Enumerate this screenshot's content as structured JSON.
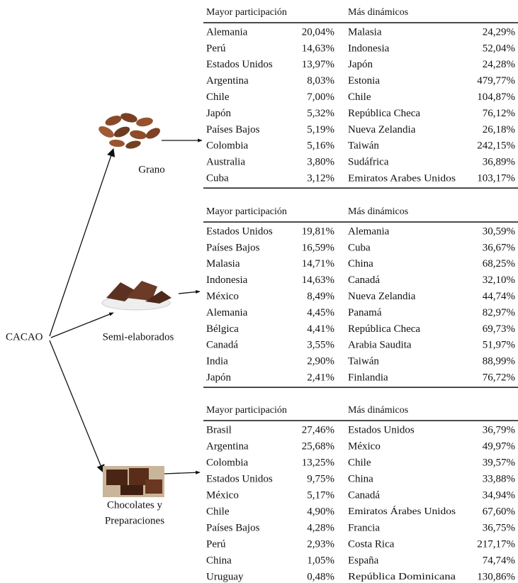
{
  "root": "CACAO",
  "sections": [
    {
      "label": [
        "Grano"
      ],
      "headers": [
        "Mayor participación",
        "Más dinámicos"
      ],
      "rows": [
        [
          "Alemania",
          "20,04%",
          "Malasia",
          "24,29%"
        ],
        [
          "Perú",
          "14,63%",
          "Indonesia",
          "52,04%"
        ],
        [
          "Estados Unidos",
          "13,97%",
          "Japón",
          "24,28%"
        ],
        [
          "Argentina",
          "8,03%",
          "Estonia",
          "479,77%"
        ],
        [
          "Chile",
          "7,00%",
          "Chile",
          "104,87%"
        ],
        [
          "Japón",
          "5,32%",
          "República Checa",
          "76,12%"
        ],
        [
          "Países Bajos",
          "5,19%",
          "Nueva Zelandia",
          "26,18%"
        ],
        [
          "Colombia",
          "5,16%",
          "Taiwán",
          "242,15%"
        ],
        [
          "Australia",
          "3,80%",
          "Sudáfrica",
          "36,89%"
        ],
        [
          "Cuba",
          "3,12%",
          "Emiratos Arabes Unidos",
          "103,17%"
        ]
      ]
    },
    {
      "label": [
        "Semi-elaborados"
      ],
      "headers": [
        "Mayor participación",
        "Más dinámicos"
      ],
      "rows": [
        [
          "Estados Unidos",
          "19,81%",
          "Alemania",
          "30,59%"
        ],
        [
          "Países Bajos",
          "16,59%",
          "Cuba",
          "36,67%"
        ],
        [
          "Malasia",
          "14,71%",
          "China",
          "68,25%"
        ],
        [
          "Indonesia",
          "14,63%",
          "Canadá",
          "32,10%"
        ],
        [
          "México",
          "8,49%",
          "Nueva Zelandia",
          "44,74%"
        ],
        [
          "Alemania",
          "4,45%",
          "Panamá",
          "82,97%"
        ],
        [
          "Bélgica",
          "4,41%",
          "República Checa",
          "69,73%"
        ],
        [
          "Canadá",
          "3,55%",
          "Arabia Saudita",
          "51,97%"
        ],
        [
          "India",
          "2,90%",
          "Taiwán",
          "88,99%"
        ],
        [
          "Japón",
          "2,41%",
          "Finlandia",
          "76,72%"
        ]
      ]
    },
    {
      "label": [
        "Chocolates y",
        "Preparaciones"
      ],
      "headers": [
        "Mayor participación",
        "Más dinámicos"
      ],
      "rows": [
        [
          "Brasil",
          "27,46%",
          "Estados Unidos",
          "36,79%"
        ],
        [
          "Argentina",
          "25,68%",
          "México",
          "49,97%"
        ],
        [
          "Colombia",
          "13,25%",
          "Chile",
          "39,57%"
        ],
        [
          "Estados Unidos",
          "9,75%",
          "China",
          "33,88%"
        ],
        [
          "México",
          "5,17%",
          "Canadá",
          "34,94%"
        ],
        [
          "Chile",
          "4,90%",
          "Emiratos Árabes Unidos",
          "67,60%"
        ],
        [
          "Países Bajos",
          "4,28%",
          "Francia",
          "36,75%"
        ],
        [
          "Perú",
          "2,93%",
          "Costa Rica",
          "217,17%"
        ],
        [
          "China",
          "1,05%",
          "España",
          "74,74%"
        ],
        [
          "Uruguay",
          "0,48%",
          "República Dominicana",
          "130,86%"
        ]
      ]
    }
  ]
}
